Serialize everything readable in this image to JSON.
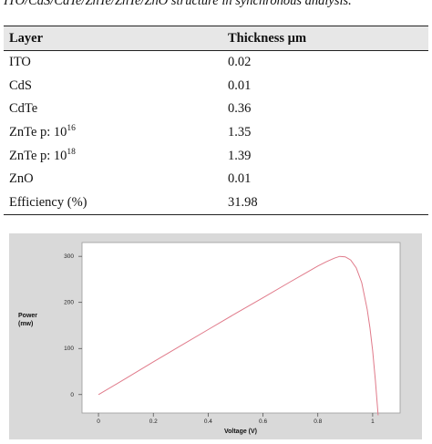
{
  "caption": "ITO/CdS/CdTe/ZnTe/ZnTe/ZnO structure in synchronous analysis.",
  "table": {
    "headers": [
      "Layer",
      "Thickness µm"
    ],
    "rows": [
      {
        "layer": "ITO",
        "sup": "",
        "value": "0.02"
      },
      {
        "layer": "CdS",
        "sup": "",
        "value": "0.01"
      },
      {
        "layer": "CdTe",
        "sup": "",
        "value": "0.36"
      },
      {
        "layer": "ZnTe p: 10",
        "sup": "16",
        "value": "1.35"
      },
      {
        "layer": "ZnTe p: 10",
        "sup": "18",
        "value": "1.39"
      },
      {
        "layer": "ZnO",
        "sup": "",
        "value": "0.01"
      },
      {
        "layer": "Efficiency (%)",
        "sup": "",
        "value": "31.98"
      }
    ]
  },
  "chart_data": {
    "type": "line",
    "xlabel": "Voltage (V)",
    "ylabel_line1": "Power",
    "ylabel_line2": "(mw)",
    "xlim": [
      -0.06,
      1.1
    ],
    "ylim": [
      -40,
      330
    ],
    "x_ticks": [
      0,
      0.2,
      0.4,
      0.6,
      0.8,
      1
    ],
    "y_ticks": [
      0,
      100,
      200,
      300
    ],
    "grid": false,
    "series": [
      {
        "color": "#e07a8a",
        "x": [
          0,
          0.1,
          0.2,
          0.3,
          0.4,
          0.5,
          0.6,
          0.7,
          0.75,
          0.8,
          0.83,
          0.86,
          0.88,
          0.9,
          0.92,
          0.94,
          0.96,
          0.98,
          0.99,
          1.0,
          1.01,
          1.02
        ],
        "y": [
          0,
          35,
          71,
          106,
          141,
          176,
          210,
          245,
          262,
          279,
          288,
          296,
          300,
          299,
          292,
          275,
          243,
          185,
          145,
          95,
          30,
          -45
        ]
      }
    ]
  }
}
